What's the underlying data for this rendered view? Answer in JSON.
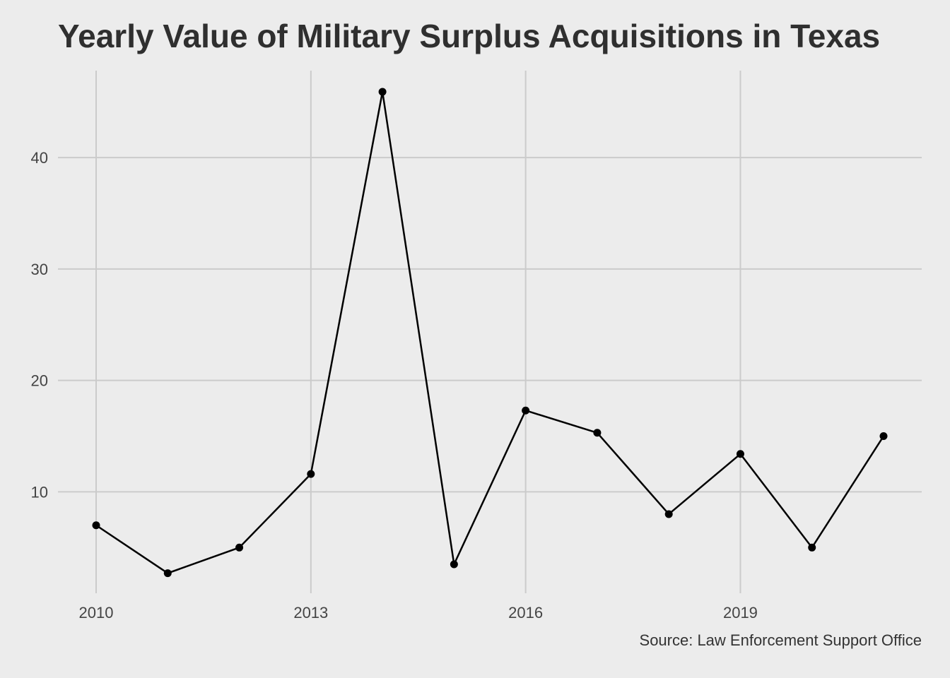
{
  "chart_data": {
    "type": "line",
    "title": "Yearly Value of Military Surplus Acquisitions in Texas",
    "caption": "Source: Law Enforcement Support Office",
    "xlabel": "",
    "ylabel": "",
    "x": [
      2010,
      2011,
      2012,
      2013,
      2014,
      2015,
      2016,
      2017,
      2018,
      2019,
      2020,
      2021
    ],
    "series": [
      {
        "values": [
          7.0,
          2.7,
          5.0,
          11.6,
          45.9,
          3.5,
          17.3,
          15.3,
          8.0,
          13.4,
          5.0,
          15.0
        ]
      }
    ],
    "x_ticks": [
      "2010",
      "2013",
      "2016",
      "2019"
    ],
    "y_ticks": [
      "10",
      "20",
      "30",
      "40"
    ],
    "xlim": [
      2010,
      2021
    ],
    "ylim": [
      0.9,
      47.8
    ],
    "grid": true,
    "colors": {
      "background": "#ececec",
      "grid": "#cbcbcb",
      "line": "#000000",
      "text": "#2f2f2f"
    }
  }
}
